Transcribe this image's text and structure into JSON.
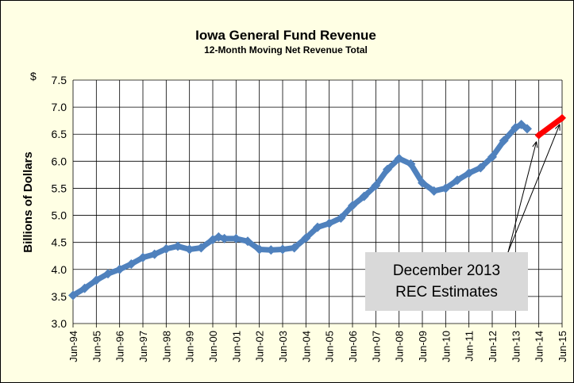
{
  "chart_data": {
    "type": "line",
    "title": "Iowa General Fund Revenue",
    "subtitle": "12-Month Moving Net Revenue Total",
    "y_unit": "$",
    "y_label": "Billions of Dollars",
    "annotation": [
      "December 2013",
      "REC Estimates"
    ],
    "x": [
      "1994-06",
      "1994-12",
      "1995-06",
      "1995-12",
      "1996-06",
      "1996-12",
      "1997-06",
      "1997-12",
      "1998-06",
      "1998-12",
      "1999-06",
      "1999-12",
      "2000-06",
      "2000-09",
      "2000-12",
      "2001-06",
      "2001-12",
      "2002-06",
      "2002-12",
      "2003-06",
      "2003-12",
      "2004-06",
      "2004-12",
      "2005-06",
      "2005-12",
      "2006-06",
      "2006-12",
      "2007-06",
      "2007-12",
      "2008-06",
      "2008-12",
      "2009-06",
      "2009-12",
      "2010-06",
      "2010-12",
      "2011-06",
      "2011-12",
      "2012-06",
      "2012-12",
      "2013-06",
      "2013-09",
      "2013-12",
      "2014-06",
      "2015-06"
    ],
    "series": [
      {
        "color": "#4f81bd",
        "values": [
          3.52,
          3.65,
          3.8,
          3.92,
          4.0,
          4.1,
          4.22,
          4.28,
          4.38,
          4.43,
          4.37,
          4.4,
          4.55,
          4.6,
          4.57,
          4.57,
          4.52,
          4.37,
          4.36,
          4.37,
          4.4,
          4.58,
          4.78,
          4.85,
          4.95,
          5.18,
          5.35,
          5.55,
          5.85,
          6.05,
          5.95,
          5.6,
          5.45,
          5.5,
          5.65,
          5.78,
          5.88,
          6.08,
          6.38,
          6.62,
          6.68,
          6.6,
          null,
          null
        ]
      },
      {
        "color": "#ff0000",
        "values": [
          null,
          null,
          null,
          null,
          null,
          null,
          null,
          null,
          null,
          null,
          null,
          null,
          null,
          null,
          null,
          null,
          null,
          null,
          null,
          null,
          null,
          null,
          null,
          null,
          null,
          null,
          null,
          null,
          null,
          null,
          null,
          null,
          null,
          null,
          null,
          null,
          null,
          null,
          null,
          null,
          null,
          null,
          6.48,
          6.8
        ]
      }
    ],
    "xlim": [
      "1994-06",
      "2015-06"
    ],
    "xticks": [
      {
        "value": "1994-06",
        "label": "Jun-94"
      },
      {
        "value": "1995-06",
        "label": "Jun-95"
      },
      {
        "value": "1996-06",
        "label": "Jun-96"
      },
      {
        "value": "1997-06",
        "label": "Jun-97"
      },
      {
        "value": "1998-06",
        "label": "Jun-98"
      },
      {
        "value": "1999-06",
        "label": "Jun-99"
      },
      {
        "value": "2000-06",
        "label": "Jun-00"
      },
      {
        "value": "2001-06",
        "label": "Jun-01"
      },
      {
        "value": "2002-06",
        "label": "Jun-02"
      },
      {
        "value": "2003-06",
        "label": "Jun-03"
      },
      {
        "value": "2004-06",
        "label": "Jun-04"
      },
      {
        "value": "2005-06",
        "label": "Jun-05"
      },
      {
        "value": "2006-06",
        "label": "Jun-06"
      },
      {
        "value": "2007-06",
        "label": "Jun-07"
      },
      {
        "value": "2008-06",
        "label": "Jun-08"
      },
      {
        "value": "2009-06",
        "label": "Jun-09"
      },
      {
        "value": "2010-06",
        "label": "Jun-10"
      },
      {
        "value": "2011-06",
        "label": "Jun-11"
      },
      {
        "value": "2012-06",
        "label": "Jun-12"
      },
      {
        "value": "2013-06",
        "label": "Jun-13"
      },
      {
        "value": "2014-06",
        "label": "Jun-14"
      },
      {
        "value": "2015-06",
        "label": "Jun-15"
      }
    ],
    "ylim": [
      3.0,
      7.5
    ],
    "yticks": [
      {
        "value": 3.0,
        "label": "3.0"
      },
      3.5,
      {
        "value": 4.0,
        "label": "4.0"
      },
      4.5,
      {
        "value": 5.0,
        "label": "5.0"
      },
      5.5,
      {
        "value": 6.0,
        "label": "6.0"
      },
      6.5,
      {
        "value": 7.0,
        "label": "7.0"
      },
      7.5
    ],
    "grid": true
  }
}
